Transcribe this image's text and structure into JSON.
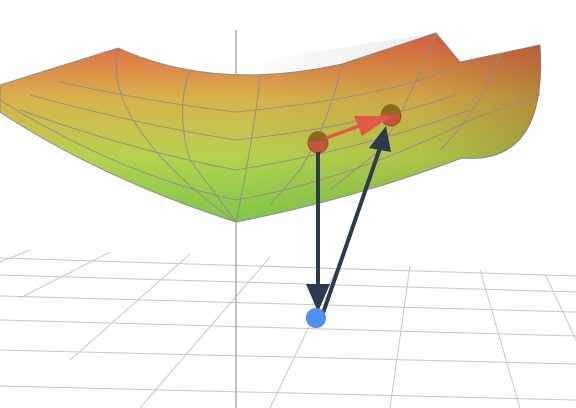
{
  "scene": {
    "colors": {
      "background": "#ffffff",
      "grid": "#c8c8c8",
      "axis": "#9a9a9a",
      "surface_high": "#e06045",
      "surface_mid": "#d9b24c",
      "surface_low": "#b7d24e",
      "surface_bottom": "#7dc64a",
      "mesh": "#8e8e8e",
      "arrow_dark": "#2c3a4e",
      "arrow_red": "#e25a45",
      "point_surface": "#c0573a",
      "point_surface_top": "#8a6a1e",
      "point_base": "#4f8ff0"
    }
  }
}
